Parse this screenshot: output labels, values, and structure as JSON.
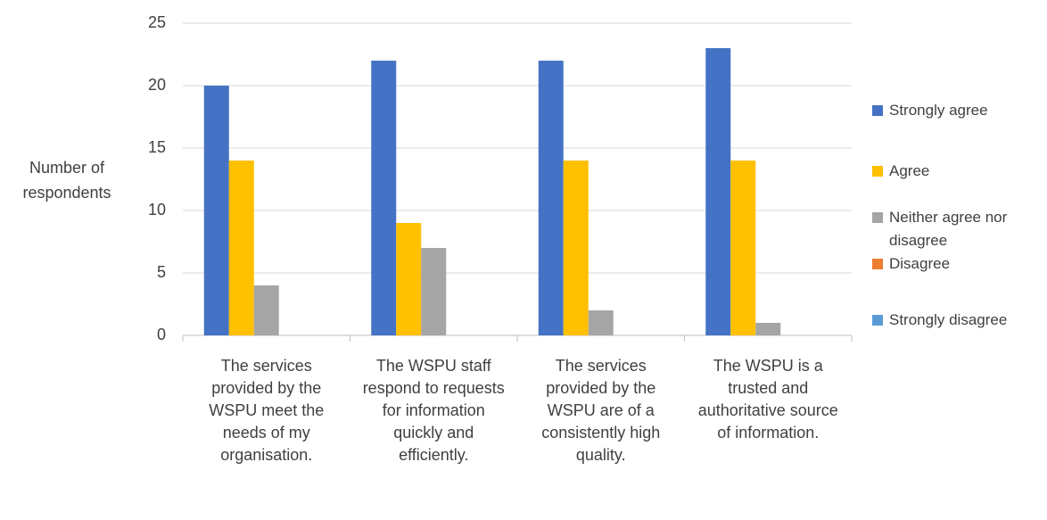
{
  "chart_data": {
    "type": "bar",
    "y_label": "Number of respondents",
    "categories": [
      "The services provided by the WSPU meet the needs of my organisation.",
      "The WSPU staff respond to requests for information quickly and efficiently.",
      "The services provided by the WSPU are of a consistently high quality.",
      "The WSPU is a trusted and authoritative source of information."
    ],
    "series": [
      {
        "name": "Strongly agree",
        "color": "#4472c4",
        "values": [
          20,
          22,
          22,
          23
        ]
      },
      {
        "name": "Agree",
        "color": "#ffc000",
        "values": [
          14,
          9,
          14,
          14
        ]
      },
      {
        "name": "Neither agree nor disagree",
        "color": "#a5a5a5",
        "values": [
          4,
          7,
          2,
          1
        ]
      },
      {
        "name": "Disagree",
        "color": "#ed7d31",
        "values": [
          0,
          0,
          0,
          0
        ]
      },
      {
        "name": "Strongly disagree",
        "color": "#5b9bd5",
        "values": [
          0,
          0,
          0,
          0
        ]
      }
    ],
    "ylim": [
      0,
      25
    ],
    "yticks": [
      0,
      5,
      10,
      15,
      20,
      25
    ],
    "grid": true,
    "legend": "right"
  }
}
